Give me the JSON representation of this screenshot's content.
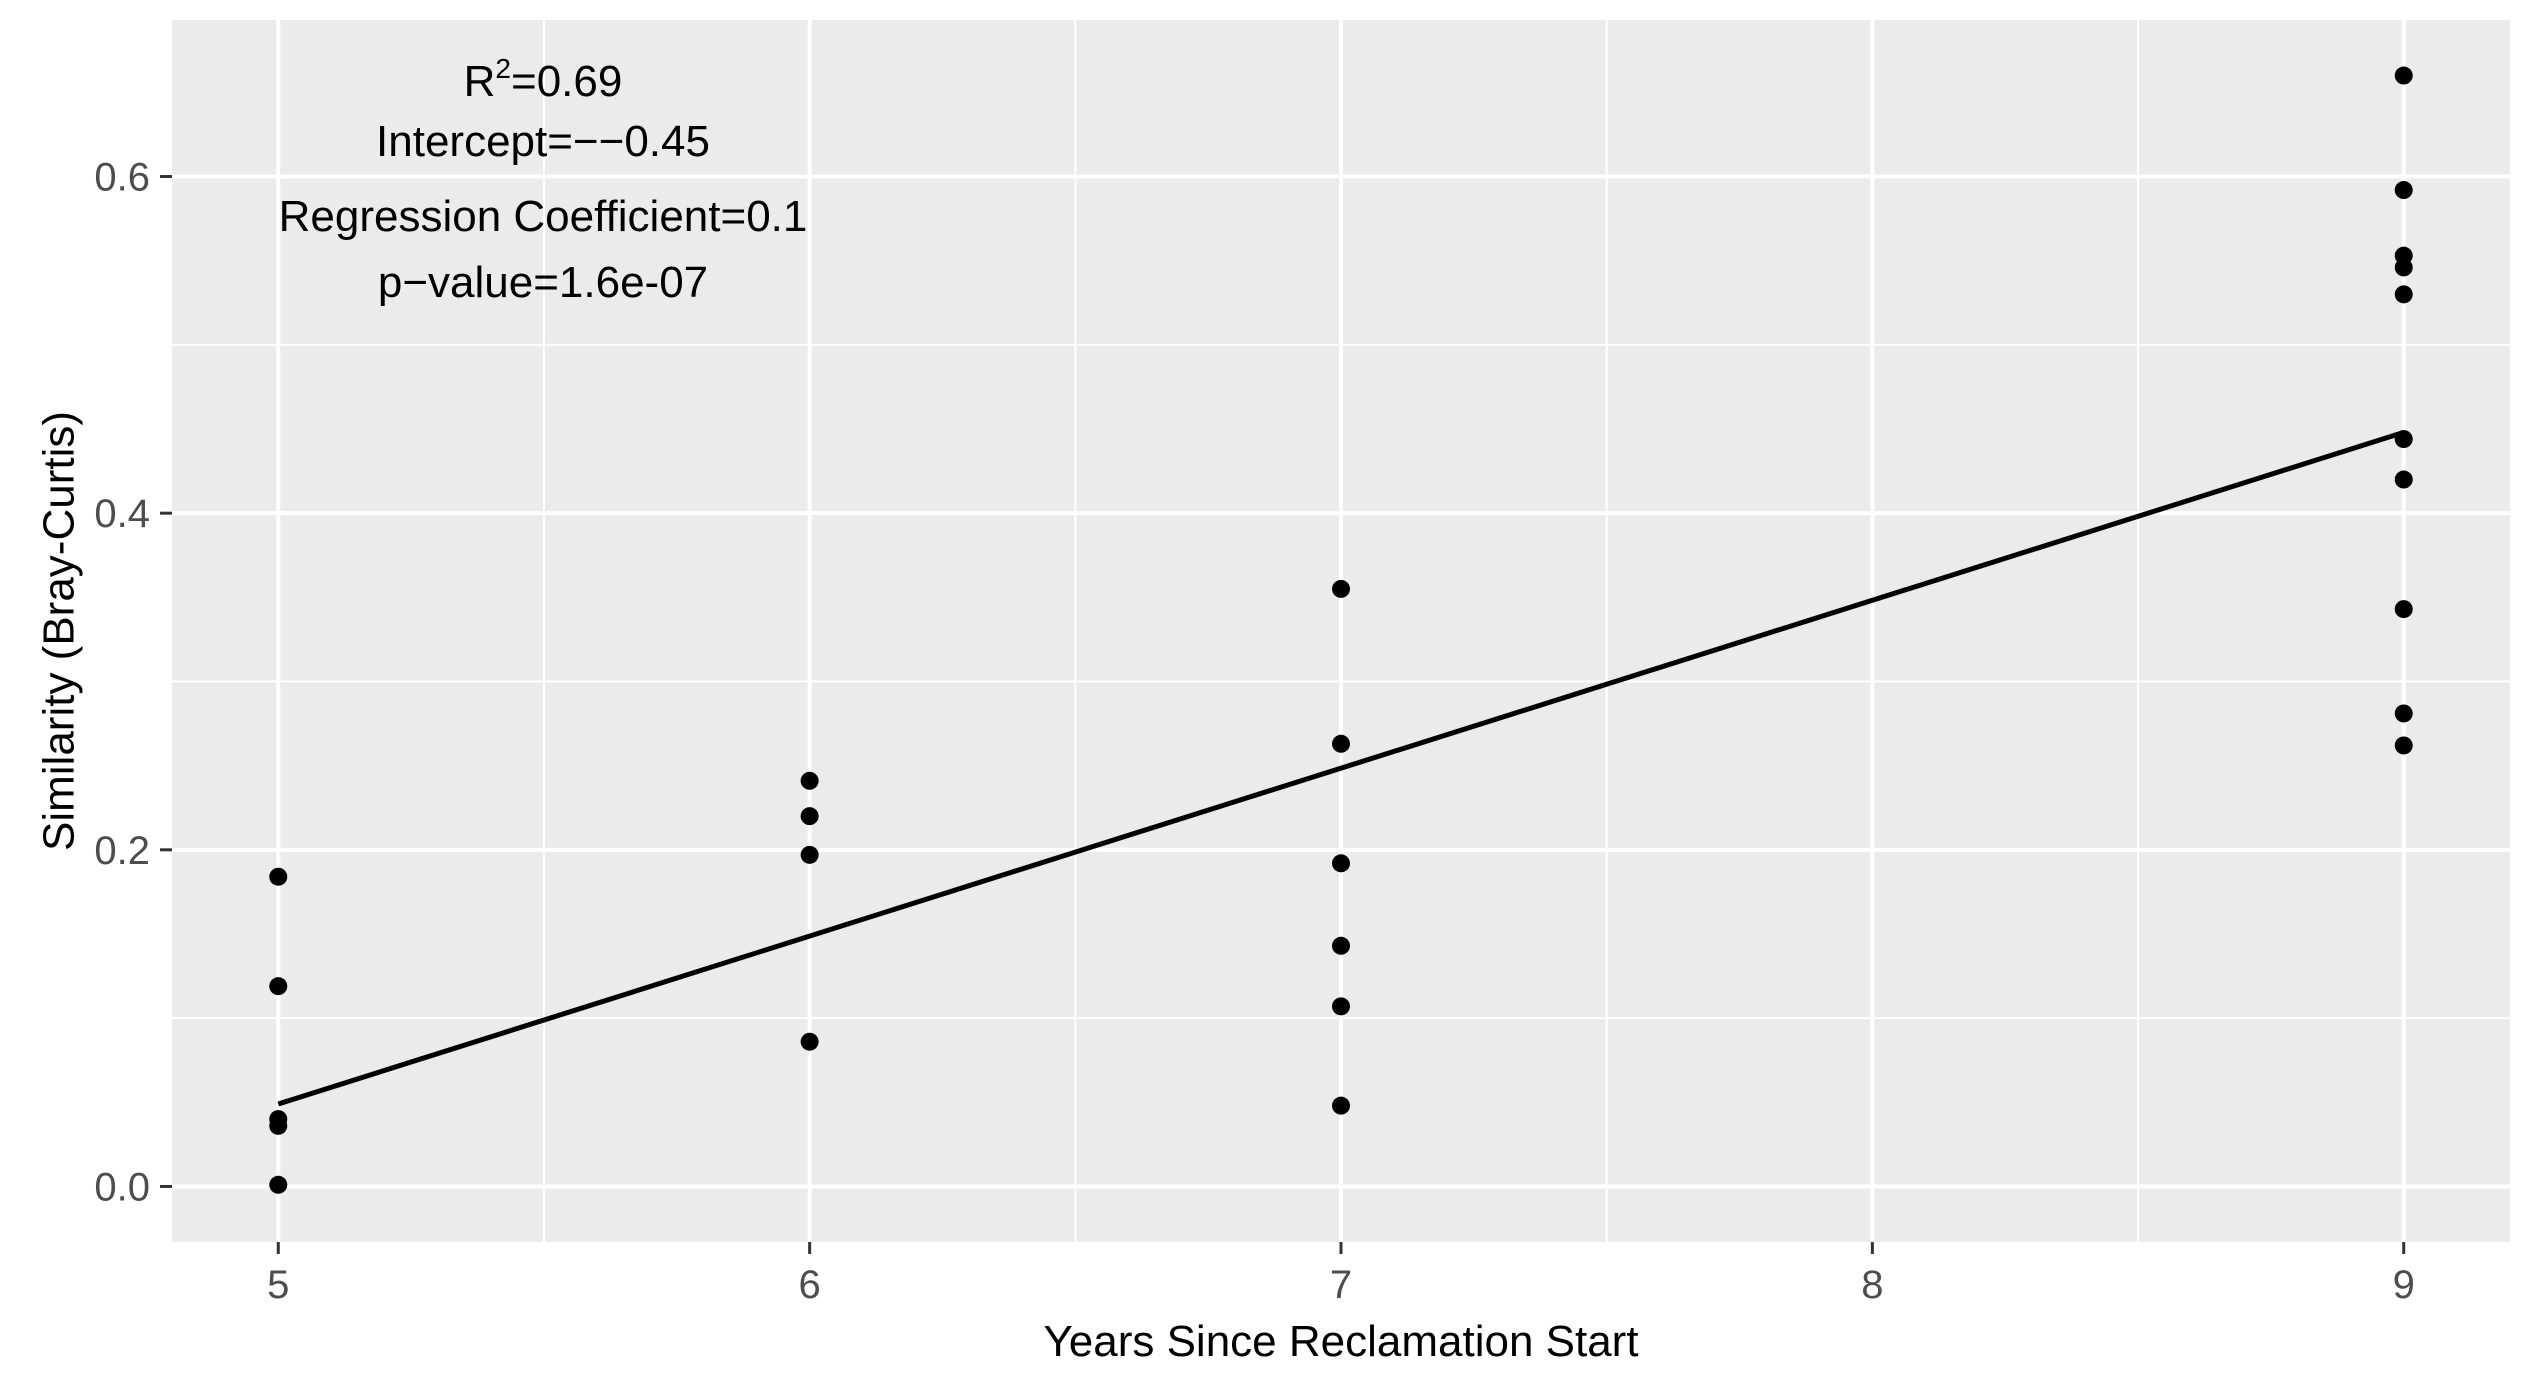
{
  "chart_data": {
    "type": "scatter",
    "xlabel": "Years Since Reclamation Start",
    "ylabel": "Similarity (Bray-Curtis)",
    "xlim": [
      4.8,
      9.2
    ],
    "ylim": [
      -0.033,
      0.693
    ],
    "x_ticks": [
      5,
      6,
      7,
      8,
      9
    ],
    "x_tick_labels": [
      "5",
      "6",
      "7",
      "8",
      "9"
    ],
    "y_ticks": [
      0.0,
      0.2,
      0.4,
      0.6
    ],
    "y_tick_labels": [
      "0.0",
      "0.2",
      "0.4",
      "0.6"
    ],
    "grid": true,
    "points": [
      {
        "x": 5,
        "y": 0.184
      },
      {
        "x": 5,
        "y": 0.119
      },
      {
        "x": 5,
        "y": 0.04
      },
      {
        "x": 5,
        "y": 0.036
      },
      {
        "x": 5,
        "y": 0.001
      },
      {
        "x": 6,
        "y": 0.241
      },
      {
        "x": 6,
        "y": 0.22
      },
      {
        "x": 6,
        "y": 0.197
      },
      {
        "x": 6,
        "y": 0.086
      },
      {
        "x": 7,
        "y": 0.355
      },
      {
        "x": 7,
        "y": 0.263
      },
      {
        "x": 7,
        "y": 0.192
      },
      {
        "x": 7,
        "y": 0.143
      },
      {
        "x": 7,
        "y": 0.107
      },
      {
        "x": 7,
        "y": 0.048
      },
      {
        "x": 9,
        "y": 0.66
      },
      {
        "x": 9,
        "y": 0.592
      },
      {
        "x": 9,
        "y": 0.553
      },
      {
        "x": 9,
        "y": 0.546
      },
      {
        "x": 9,
        "y": 0.53
      },
      {
        "x": 9,
        "y": 0.444
      },
      {
        "x": 9,
        "y": 0.42
      },
      {
        "x": 9,
        "y": 0.343
      },
      {
        "x": 9,
        "y": 0.281
      },
      {
        "x": 9,
        "y": 0.262
      }
    ],
    "regression": {
      "x": [
        5,
        9
      ],
      "y": [
        0.049,
        0.448
      ]
    },
    "annotations": {
      "r2_label": "R",
      "r2_superscript": "2",
      "r2_value": "=0.69",
      "intercept": "Intercept=−−0.45",
      "coefficient": "Regression Coefficient=0.1",
      "p_value": "p−value=1.6e-07"
    },
    "colors": {
      "panel": "#ebebeb",
      "grid": "#ffffff",
      "points": "#000000",
      "line": "#000000"
    }
  }
}
